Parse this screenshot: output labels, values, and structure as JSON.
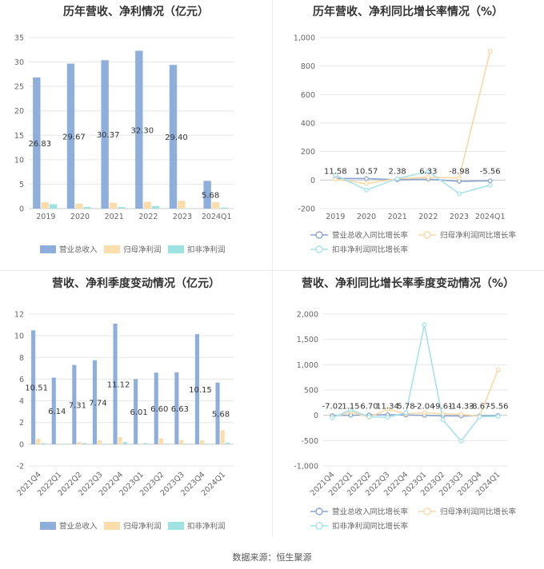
{
  "footer": "数据来源：恒生聚源",
  "colors": {
    "revenue": "#8eaedc",
    "net_profit": "#fbdcab",
    "deducted_profit": "#9fe2e2",
    "revenue_line": "#8aa6d1",
    "net_profit_line": "#fcd8a4",
    "deducted_line": "#a6e2ea",
    "grid": "#e6e6e6",
    "axis_text": "#666666"
  },
  "chart_data": [
    {
      "id": "annual_values",
      "type": "bar",
      "title": "历年营收、净利情况（亿元）",
      "categories": [
        "2019",
        "2020",
        "2021",
        "2022",
        "2023",
        "2024Q1"
      ],
      "ylim": [
        0,
        35
      ],
      "yticks": [
        0,
        5,
        10,
        15,
        20,
        25,
        30,
        35
      ],
      "tick_labels": [
        "0",
        "5",
        "10",
        "15",
        "20",
        "25",
        "30",
        "35"
      ],
      "series": [
        {
          "name": "营业总收入",
          "values": [
            26.83,
            29.67,
            30.37,
            32.3,
            29.4,
            5.68
          ]
        },
        {
          "name": "归母净利润",
          "values": [
            1.3,
            1.0,
            1.2,
            1.4,
            1.6,
            1.3
          ]
        },
        {
          "name": "扣非净利润",
          "values": [
            0.9,
            0.3,
            0.3,
            0.5,
            0.1,
            0.2
          ]
        }
      ],
      "data_labels": [
        "26.83",
        "29.67",
        "30.37",
        "32.30",
        "29.40",
        "5.68"
      ],
      "legend": "bottom",
      "grid": true
    },
    {
      "id": "annual_growth",
      "type": "line",
      "title": "历年营收、净利同比增长率情况（%）",
      "categories": [
        "2019",
        "2020",
        "2021",
        "2022",
        "2023",
        "2024Q1"
      ],
      "ylim": [
        -200,
        1000
      ],
      "yticks": [
        -200,
        0,
        200,
        400,
        600,
        800,
        1000
      ],
      "tick_labels": [
        "-200",
        "0",
        "200",
        "400",
        "600",
        "800",
        "1,000"
      ],
      "series": [
        {
          "name": "营业总收入同比增长率",
          "values": [
            11.58,
            10.57,
            2.38,
            6.33,
            -8.98,
            -5.56
          ]
        },
        {
          "name": "归母净利润同比增长率",
          "values": [
            5,
            -25,
            10,
            20,
            15,
            905
          ]
        },
        {
          "name": "扣非净利润同比增长率",
          "values": [
            35,
            -70,
            10,
            60,
            -95,
            -35
          ]
        }
      ],
      "data_labels": [
        "11.58",
        "10.57",
        "2.38",
        "6.33",
        "-8.98",
        "-5.56"
      ],
      "legend": "bottom",
      "grid": true
    },
    {
      "id": "quarterly_values",
      "type": "bar",
      "title": "营收、净利季度变动情况（亿元）",
      "categories": [
        "2021Q4",
        "2022Q1",
        "2022Q2",
        "2022Q3",
        "2022Q4",
        "2023Q1",
        "2023Q2",
        "2023Q3",
        "2023Q4",
        "2024Q1"
      ],
      "ylim": [
        -2,
        12
      ],
      "yticks": [
        -2,
        0,
        2,
        4,
        6,
        8,
        10,
        12
      ],
      "tick_labels": [
        "-2",
        "0",
        "2",
        "4",
        "6",
        "8",
        "10",
        "12"
      ],
      "series": [
        {
          "name": "营业总收入",
          "values": [
            10.51,
            6.14,
            7.31,
            7.74,
            11.12,
            6.01,
            6.6,
            6.63,
            10.15,
            5.68
          ]
        },
        {
          "name": "归母净利润",
          "values": [
            0.5,
            0.05,
            0.2,
            0.35,
            0.65,
            0.05,
            0.55,
            0.4,
            0.35,
            1.3
          ]
        },
        {
          "name": "扣非净利润",
          "values": [
            0.1,
            0.0,
            0.1,
            0.05,
            0.2,
            0.1,
            0.05,
            0.05,
            0.05,
            0.15
          ]
        }
      ],
      "data_labels": [
        "10.51",
        "6.14",
        "7.31",
        "7.74",
        "11.12",
        "6.01",
        "6.60",
        "6.63",
        "10.15",
        "5.68"
      ],
      "legend": "bottom",
      "grid": true
    },
    {
      "id": "quarterly_growth",
      "type": "line",
      "title": "营收、净利同比增长率季度变动情况（%）",
      "categories": [
        "2021Q4",
        "2022Q1",
        "2022Q2",
        "2022Q3",
        "2022Q4",
        "2023Q1",
        "2023Q2",
        "2023Q3",
        "2023Q4",
        "2024Q1"
      ],
      "ylim": [
        -1000,
        2000
      ],
      "yticks": [
        -1000,
        -500,
        0,
        500,
        1000,
        1500,
        2000
      ],
      "tick_labels": [
        "-1,000",
        "-500",
        "0",
        "500",
        "1,000",
        "1,500",
        "2,000"
      ],
      "series": [
        {
          "name": "营业总收入同比增长率",
          "values": [
            -7.02,
            1.15,
            6.7,
            11.34,
            5.78,
            -2.04,
            -9.61,
            -14.33,
            -8.67,
            -5.56
          ]
        },
        {
          "name": "归母净利润同比增长率",
          "values": [
            -40,
            70,
            -40,
            120,
            30,
            50,
            30,
            20,
            -20,
            900
          ]
        },
        {
          "name": "扣非净利润同比增长率",
          "values": [
            -50,
            110,
            -30,
            -40,
            50,
            1790,
            -90,
            -510,
            -30,
            -20
          ]
        }
      ],
      "data_labels": [
        "-7.02",
        "1.15",
        "6.70",
        "11.34",
        "5.78",
        "-2.04",
        "-9.61",
        "-14.33",
        "-8.67",
        "-5.56"
      ],
      "legend": "bottom",
      "grid": true
    }
  ]
}
